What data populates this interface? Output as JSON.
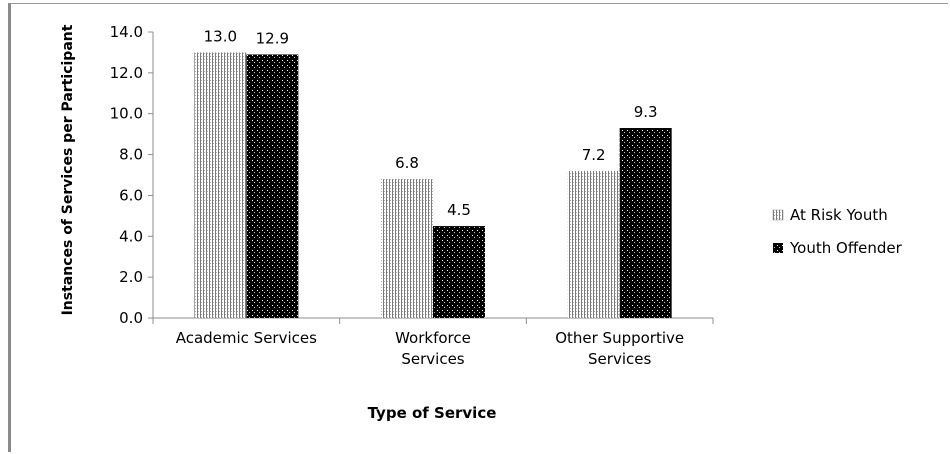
{
  "chart_data": {
    "type": "bar",
    "title": "",
    "xlabel": "Type of Service",
    "ylabel": "Instances of Services per Participant",
    "ylim": [
      0,
      14
    ],
    "ytick_step": 2,
    "yticks": [
      "0.0",
      "2.0",
      "4.0",
      "6.0",
      "8.0",
      "10.0",
      "12.0",
      "14.0"
    ],
    "categories": [
      [
        "Academic Services"
      ],
      [
        "Workforce",
        "Services"
      ],
      [
        "Other Supportive",
        "Services"
      ]
    ],
    "series": [
      {
        "name": "At Risk Youth",
        "values": [
          13.0,
          6.8,
          7.2
        ],
        "labels": [
          "13.0",
          "6.8",
          "7.2"
        ],
        "pattern": "vertical-dots",
        "color": "#ffffff"
      },
      {
        "name": "Youth Offender",
        "values": [
          12.9,
          4.5,
          9.3
        ],
        "labels": [
          "12.9",
          "4.5",
          "9.3"
        ],
        "pattern": "dark-dots",
        "color": "#000000"
      }
    ],
    "legend_position": "right",
    "grid": false
  }
}
